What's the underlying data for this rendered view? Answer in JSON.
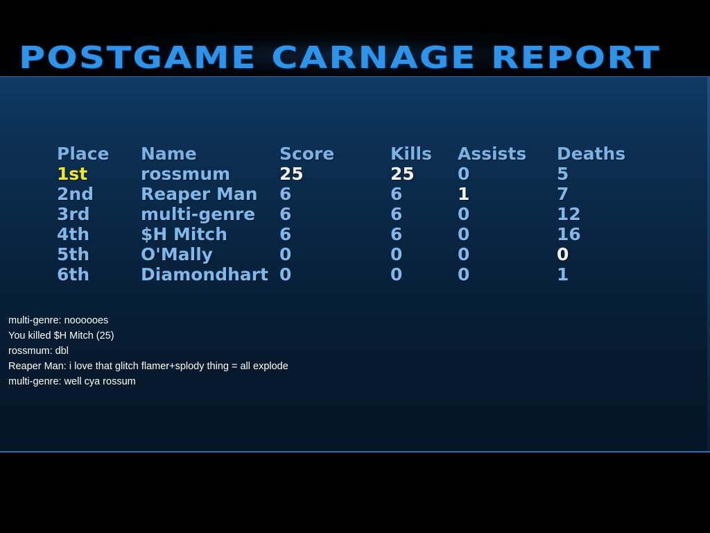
{
  "title": "POSTGAME CARNAGE REPORT",
  "colors": {
    "title": "#2f93e8",
    "table_text": "#7fb8ea",
    "highlight_white": "#f2f2f2",
    "first_place": "#f2e62a",
    "panel_top": "#103a63",
    "panel_bottom": "#041526",
    "border": "#2b6fae"
  },
  "table": {
    "headers": {
      "place": "Place",
      "name": "Name",
      "score": "Score",
      "kills": "Kills",
      "assists": "Assists",
      "deaths": "Deaths"
    },
    "rows": [
      {
        "place": "1st",
        "name": "rossmum",
        "score": "25",
        "kills": "25",
        "assists": "0",
        "deaths": "5"
      },
      {
        "place": "2nd",
        "name": "Reaper Man",
        "score": "6",
        "kills": "6",
        "assists": "1",
        "deaths": "7"
      },
      {
        "place": "3rd",
        "name": "multi-genre",
        "score": "6",
        "kills": "6",
        "assists": "0",
        "deaths": "12"
      },
      {
        "place": "4th",
        "name": "$H Mitch",
        "score": "6",
        "kills": "6",
        "assists": "0",
        "deaths": "16"
      },
      {
        "place": "5th",
        "name": "O'Mally",
        "score": "0",
        "kills": "0",
        "assists": "0",
        "deaths": "0"
      },
      {
        "place": "6th",
        "name": "Diamondhart",
        "score": "0",
        "kills": "0",
        "assists": "0",
        "deaths": "1"
      }
    ]
  },
  "chat": [
    "multi-genre: noooooes",
    "You killed $H Mitch (25)",
    "rossmum: dbl",
    "Reaper Man: i love that glitch flamer+splody thing = all explode",
    "multi-genre: well cya rossum"
  ]
}
